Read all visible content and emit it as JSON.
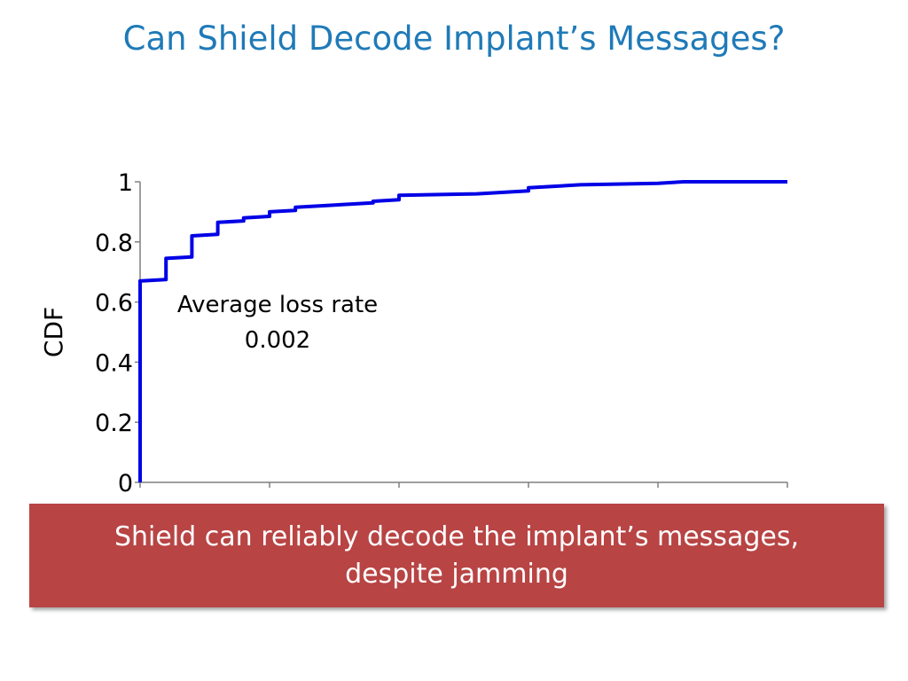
{
  "slide": {
    "title": "Can Shield Decode Implant’s Messages?",
    "banner_text": "Shield can reliably decode the implant’s messages, despite jamming",
    "banner_color": "#b84444",
    "title_color": "#1f7ab8"
  },
  "chart_data": {
    "type": "line",
    "title": "",
    "xlabel": "",
    "ylabel": "CDF",
    "xlim": [
      0,
      0.025
    ],
    "ylim": [
      0,
      1
    ],
    "x_ticks": [
      "0",
      "0.005",
      "0.01",
      "0.015",
      "0.02",
      "0.025"
    ],
    "y_ticks": [
      "0",
      "0.2",
      "0.4",
      "0.6",
      "0.8",
      "1"
    ],
    "grid": false,
    "line_color": "#0000e6",
    "annotation": {
      "line1": "Average loss rate",
      "line2": "0.002"
    },
    "series": [
      {
        "x": [
          0,
          0,
          0.001,
          0.001,
          0.002,
          0.002,
          0.003,
          0.003,
          0.004,
          0.004,
          0.005,
          0.005,
          0.006,
          0.006,
          0.009,
          0.009,
          0.01,
          0.01,
          0.013,
          0.015,
          0.015,
          0.017,
          0.02,
          0.021,
          0.025
        ],
        "y": [
          0,
          0.67,
          0.675,
          0.745,
          0.75,
          0.82,
          0.825,
          0.865,
          0.87,
          0.88,
          0.885,
          0.9,
          0.905,
          0.915,
          0.93,
          0.935,
          0.94,
          0.955,
          0.96,
          0.97,
          0.98,
          0.99,
          0.995,
          1.0,
          1.0
        ]
      }
    ]
  }
}
